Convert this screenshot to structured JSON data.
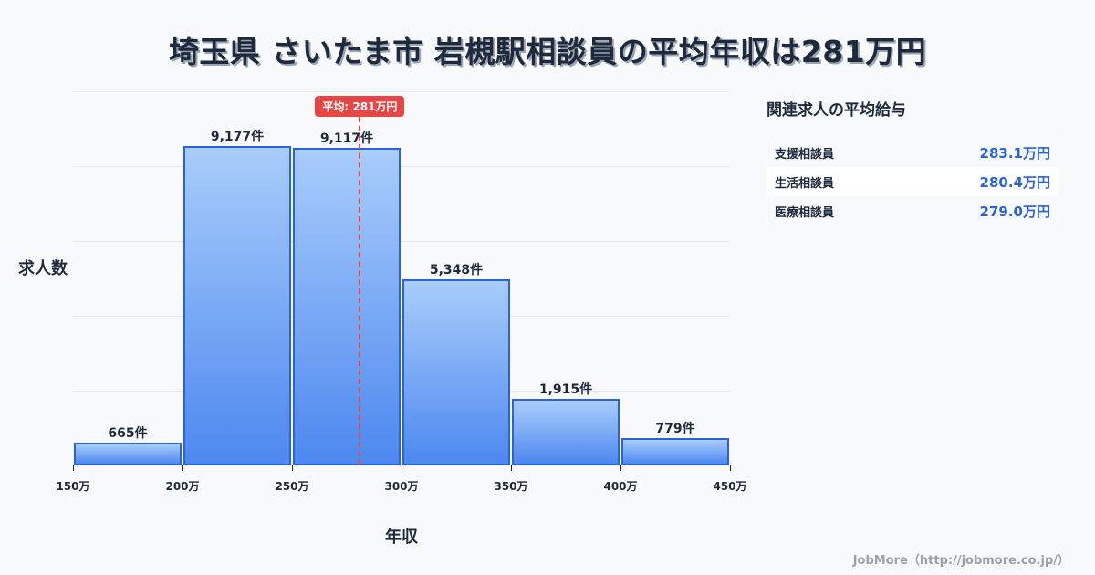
{
  "title": "埼玉県 さいたま市 岩槻駅相談員の平均年収は281万円",
  "chart_data": {
    "type": "bar",
    "title": "埼玉県 さいたま市 岩槻駅相談員の平均年収は281万円",
    "xlabel": "年収",
    "ylabel": "求人数",
    "categories": [
      "150万-200万",
      "200万-250万",
      "250万-300万",
      "300万-350万",
      "350万-400万",
      "400万-450万"
    ],
    "bin_edges": [
      150,
      200,
      250,
      300,
      350,
      400,
      450
    ],
    "values": [
      665,
      9177,
      9117,
      5348,
      1915,
      779
    ],
    "value_labels": [
      "665件",
      "9,177件",
      "9,117件",
      "5,348件",
      "1,915件",
      "779件"
    ],
    "x_tick_labels": [
      "150万",
      "200万",
      "250万",
      "300万",
      "350万",
      "400万",
      "450万"
    ],
    "ylim": [
      0,
      10750
    ],
    "grid": true,
    "annotation": {
      "label": "平均: 281万円",
      "x": 281,
      "color": "#e84545"
    },
    "bar_color": "#4d88f0"
  },
  "axes": {
    "xlabel": "年収",
    "ylabel": "求人数"
  },
  "sidebar": {
    "title": "関連求人の平均給与",
    "rows": [
      {
        "name": "支援相談員",
        "value": "283.1万円"
      },
      {
        "name": "生活相談員",
        "value": "280.4万円"
      },
      {
        "name": "医療相談員",
        "value": "279.0万円"
      }
    ]
  },
  "footer": "JobMore（http://jobmore.co.jp/）"
}
